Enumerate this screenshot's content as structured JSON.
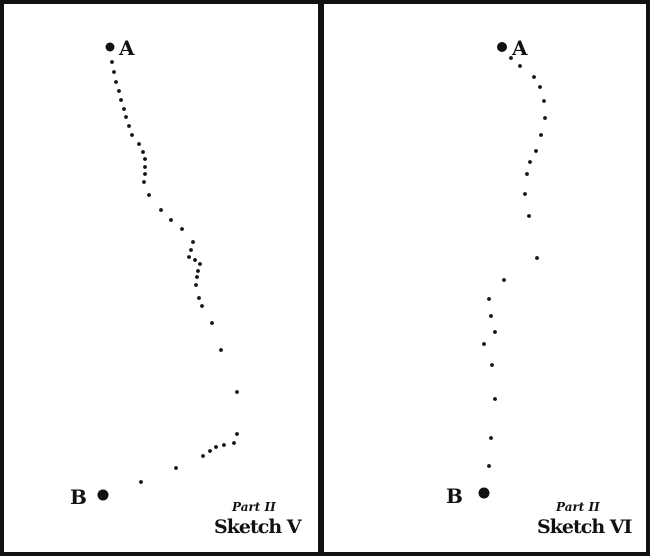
{
  "panels": [
    {
      "part": "Part II",
      "title": "Sketch V",
      "start_label": "A",
      "end_label": "B",
      "dots": [
        [
          112,
          62
        ],
        [
          114,
          72
        ],
        [
          116,
          82
        ],
        [
          119,
          91
        ],
        [
          121,
          100
        ],
        [
          124,
          109
        ],
        [
          126,
          117
        ],
        [
          129,
          126
        ],
        [
          132,
          135
        ],
        [
          139,
          144
        ],
        [
          143,
          152
        ],
        [
          145,
          159
        ],
        [
          145,
          167
        ],
        [
          145,
          174
        ],
        [
          144,
          182
        ],
        [
          149,
          195
        ],
        [
          161,
          210
        ],
        [
          171,
          220
        ],
        [
          182,
          229
        ],
        [
          193,
          242
        ],
        [
          191,
          250
        ],
        [
          189,
          257
        ],
        [
          195,
          260
        ],
        [
          200,
          264
        ],
        [
          198,
          271
        ],
        [
          197,
          277
        ],
        [
          196,
          285
        ],
        [
          199,
          298
        ],
        [
          202,
          306
        ],
        [
          212,
          323
        ],
        [
          221,
          350
        ],
        [
          237,
          392
        ],
        [
          237,
          434
        ],
        [
          234,
          443
        ],
        [
          224,
          445
        ],
        [
          216,
          447
        ],
        [
          210,
          451
        ],
        [
          203,
          456
        ],
        [
          176,
          468
        ],
        [
          141,
          482
        ]
      ]
    },
    {
      "part": "Part II",
      "title": "Sketch VI",
      "start_label": "A",
      "end_label": "B",
      "dots": [
        [
          511,
          58
        ],
        [
          520,
          66
        ],
        [
          534,
          77
        ],
        [
          540,
          87
        ],
        [
          544,
          101
        ],
        [
          545,
          118
        ],
        [
          541,
          135
        ],
        [
          536,
          151
        ],
        [
          530,
          162
        ],
        [
          527,
          174
        ],
        [
          525,
          194
        ],
        [
          529,
          216
        ],
        [
          537,
          258
        ],
        [
          504,
          280
        ],
        [
          489,
          299
        ],
        [
          491,
          316
        ],
        [
          495,
          332
        ],
        [
          484,
          344
        ],
        [
          492,
          365
        ],
        [
          495,
          399
        ],
        [
          491,
          438
        ],
        [
          489,
          466
        ]
      ]
    }
  ],
  "colors": {
    "ink": "#111111",
    "paper": "#ffffff"
  }
}
